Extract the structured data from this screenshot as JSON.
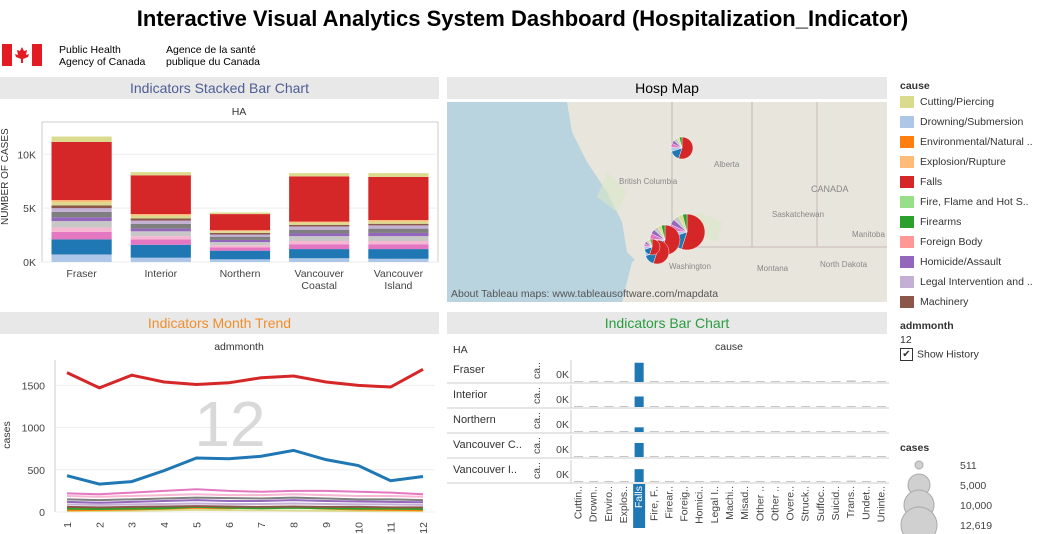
{
  "header": {
    "title": "Interactive Visual Analytics System Dashboard (Hospitalization_Indicator)",
    "org_en_line1": "Public Health",
    "org_en_line2": "Agency of Canada",
    "org_fr_line1": "Agence de la santé",
    "org_fr_line2": "publique du Canada"
  },
  "colors": {
    "falls": "#d62728",
    "drowning": "#aec7e8",
    "cutting": "#dbdb8d",
    "fraser_blue": "#1f77b4",
    "homicide": "#9467bd",
    "pink": "#e377c2",
    "grey_bar": "#c7c7c7",
    "panel_bg": "#e8e8e8",
    "orange_title": "#f28e2b",
    "green_title": "#2a9d3f",
    "blue_title": "#4e5d94"
  },
  "stacked": {
    "panel_title": "Indicators Stacked Bar Chart",
    "column_header": "HA",
    "ylabel": "NUMBER OF CASES",
    "yticks": [
      "0K",
      "5K",
      "10K"
    ]
  },
  "map": {
    "panel_title": "Hosp Map",
    "attribution": "About Tableau maps: www.tableausoftware.com/mapdata",
    "labels": [
      "Alberta",
      "British Columbia",
      "CANADA",
      "Saskatchewan",
      "Manitoba",
      "Montana",
      "North Dakota",
      "Washington"
    ]
  },
  "trend": {
    "panel_title": "Indicators Month Trend",
    "column_header": "admmonth",
    "ylabel": "cases",
    "watermark": "12",
    "yticks": [
      "0",
      "500",
      "1000",
      "1500"
    ]
  },
  "barchart": {
    "panel_title": "Indicators Bar Chart",
    "row_header": "HA",
    "column_header": "cause",
    "axis_label": "ca..",
    "tick": "0K",
    "rows": [
      "Fraser",
      "Interior",
      "Northern",
      "Vancouver C..",
      "Vancouver I.."
    ],
    "cause_labels": [
      "Cuttin..",
      "Drown..",
      "Enviro..",
      "Explos..",
      "Falls",
      "Fire, F..",
      "Firear..",
      "Foreig..",
      "Homici..",
      "Legal I..",
      "Machi..",
      "Misad..",
      "Other ..",
      "Other ..",
      "Overe..",
      "Struck..",
      "Suffoc..",
      "Suicid..",
      "Trans..",
      "Undet..",
      "Uninte.."
    ]
  },
  "legend": {
    "title": "cause",
    "items": [
      {
        "label": "Cutting/Piercing",
        "color": "#dbdb8d"
      },
      {
        "label": "Drowning/Submersion",
        "color": "#aec7e8"
      },
      {
        "label": "Environmental/Natural ..",
        "color": "#ff7f0e"
      },
      {
        "label": "Explosion/Rupture",
        "color": "#ffbb78"
      },
      {
        "label": "Falls",
        "color": "#d62728"
      },
      {
        "label": "Fire, Flame and Hot S..",
        "color": "#98df8a"
      },
      {
        "label": "Firearms",
        "color": "#2ca02c"
      },
      {
        "label": "Foreign Body",
        "color": "#ff9896"
      },
      {
        "label": "Homicide/Assault",
        "color": "#9467bd"
      },
      {
        "label": "Legal Intervention and ..",
        "color": "#c5b0d5"
      },
      {
        "label": "Machinery",
        "color": "#8c564b"
      }
    ]
  },
  "filter": {
    "title": "admmonth",
    "value": "12",
    "show_history_label": "Show History",
    "show_history_checked": true
  },
  "size_legend": {
    "title": "cases",
    "items": [
      "511",
      "5,000",
      "10,000",
      "12,619"
    ]
  },
  "chart_data": [
    {
      "type": "bar",
      "stacked": true,
      "title": "Indicators Stacked Bar Chart",
      "ylabel": "NUMBER OF CASES",
      "categories": [
        "Fraser",
        "Interior",
        "Northern",
        "Vancouver Coastal",
        "Vancouver Island"
      ],
      "ylim": [
        0,
        13000
      ],
      "series": [
        {
          "name": "Drowning/Submersion",
          "color": "#aec7e8",
          "values": [
            700,
            400,
            250,
            350,
            300
          ]
        },
        {
          "name": "",
          "color": "#1f77b4",
          "values": [
            1400,
            1200,
            800,
            850,
            900
          ]
        },
        {
          "name": "",
          "color": "#e377c2",
          "values": [
            700,
            500,
            300,
            450,
            450
          ]
        },
        {
          "name": "",
          "color": "#f7b6d2",
          "values": [
            400,
            300,
            200,
            300,
            300
          ]
        },
        {
          "name": "",
          "color": "#c7c7c7",
          "values": [
            600,
            450,
            300,
            450,
            450
          ]
        },
        {
          "name": "Homicide/Assault",
          "color": "#9467bd",
          "values": [
            350,
            250,
            200,
            250,
            300
          ]
        },
        {
          "name": "",
          "color": "#7f7f7f",
          "values": [
            500,
            450,
            300,
            350,
            400
          ]
        },
        {
          "name": "",
          "color": "#c5b0d5",
          "values": [
            350,
            300,
            200,
            300,
            300
          ]
        },
        {
          "name": "Machinery",
          "color": "#8c564b",
          "values": [
            250,
            200,
            150,
            150,
            150
          ]
        },
        {
          "name": "",
          "color": "#dbdb8d",
          "values": [
            300,
            250,
            150,
            200,
            200
          ]
        },
        {
          "name": "",
          "color": "#ffbb78",
          "values": [
            200,
            150,
            100,
            100,
            150
          ]
        },
        {
          "name": "Falls",
          "color": "#d62728",
          "values": [
            5400,
            3600,
            1500,
            4200,
            4000
          ]
        },
        {
          "name": "Cutting/Piercing",
          "color": "#dbdb8d",
          "values": [
            500,
            300,
            150,
            300,
            350
          ]
        }
      ]
    },
    {
      "type": "line",
      "title": "Indicators Month Trend",
      "ylabel": "cases",
      "x": [
        1,
        2,
        3,
        4,
        5,
        6,
        7,
        8,
        9,
        10,
        11,
        12
      ],
      "ylim": [
        0,
        1800
      ],
      "series": [
        {
          "name": "Falls",
          "color": "#d62728",
          "values": [
            1650,
            1470,
            1620,
            1540,
            1510,
            1530,
            1590,
            1610,
            1540,
            1500,
            1480,
            1690
          ]
        },
        {
          "name": "",
          "color": "#1f77b4",
          "values": [
            430,
            330,
            360,
            490,
            640,
            630,
            660,
            730,
            620,
            550,
            370,
            420
          ]
        },
        {
          "name": "",
          "color": "#e377c2",
          "values": [
            220,
            210,
            230,
            250,
            270,
            250,
            240,
            250,
            250,
            240,
            230,
            210
          ]
        },
        {
          "name": "",
          "color": "#f7b6d2",
          "values": [
            190,
            180,
            190,
            200,
            210,
            200,
            200,
            210,
            200,
            190,
            190,
            180
          ]
        },
        {
          "name": "",
          "color": "#7f7f7f",
          "values": [
            150,
            140,
            150,
            160,
            170,
            165,
            160,
            170,
            160,
            150,
            150,
            140
          ]
        },
        {
          "name": "",
          "color": "#9467bd",
          "values": [
            120,
            110,
            120,
            130,
            140,
            130,
            130,
            140,
            130,
            125,
            120,
            115
          ]
        },
        {
          "name": "",
          "color": "#c5b0d5",
          "values": [
            90,
            85,
            90,
            95,
            100,
            95,
            95,
            100,
            95,
            90,
            90,
            85
          ]
        },
        {
          "name": "",
          "color": "#8c564b",
          "values": [
            60,
            55,
            60,
            65,
            70,
            65,
            60,
            65,
            60,
            60,
            55,
            55
          ]
        },
        {
          "name": "",
          "color": "#2ca02c",
          "values": [
            40,
            35,
            40,
            45,
            60,
            50,
            45,
            50,
            45,
            40,
            40,
            35
          ]
        },
        {
          "name": "",
          "color": "#ff7f0e",
          "values": [
            20,
            25,
            30,
            40,
            50,
            45,
            60,
            55,
            40,
            30,
            25,
            20
          ]
        },
        {
          "name": "",
          "color": "#dbdb8d",
          "values": [
            10,
            12,
            15,
            20,
            25,
            22,
            20,
            18,
            15,
            12,
            10,
            10
          ]
        }
      ]
    },
    {
      "type": "bar",
      "title": "Indicators Bar Chart",
      "rows": [
        "Fraser",
        "Interior",
        "Northern",
        "Vancouver Coastal",
        "Vancouver Island"
      ],
      "categories": [
        "Cutting/Piercing",
        "Drowning/Submersion",
        "Environmental/Natural",
        "Explosion/Rupture",
        "Falls",
        "Fire, Flame and Hot S..",
        "Firearms",
        "Foreign Body",
        "Homicide/Assault",
        "Legal Intervention",
        "Machinery",
        "Misadventure",
        "Other 1",
        "Other 2",
        "Overexertion",
        "Struck",
        "Suffocation",
        "Suicide",
        "Transport",
        "Undetermined",
        "Unintentional"
      ],
      "highlight": "Falls",
      "values_by_row": [
        [
          10,
          5,
          3,
          2,
          1650,
          8,
          4,
          30,
          60,
          5,
          25,
          10,
          15,
          70,
          50,
          60,
          10,
          80,
          140,
          40,
          15
        ],
        [
          8,
          4,
          3,
          1,
          900,
          6,
          3,
          20,
          30,
          4,
          20,
          8,
          10,
          40,
          30,
          40,
          8,
          50,
          80,
          25,
          10
        ],
        [
          5,
          2,
          2,
          1,
          400,
          3,
          2,
          10,
          20,
          2,
          10,
          4,
          6,
          20,
          15,
          20,
          4,
          25,
          40,
          12,
          6
        ],
        [
          9,
          4,
          3,
          1,
          1200,
          7,
          3,
          25,
          50,
          5,
          15,
          8,
          12,
          55,
          40,
          45,
          8,
          60,
          110,
          30,
          12
        ],
        [
          8,
          4,
          3,
          1,
          1100,
          6,
          3,
          20,
          40,
          4,
          18,
          8,
          11,
          50,
          35,
          45,
          8,
          60,
          120,
          30,
          12
        ]
      ]
    }
  ]
}
